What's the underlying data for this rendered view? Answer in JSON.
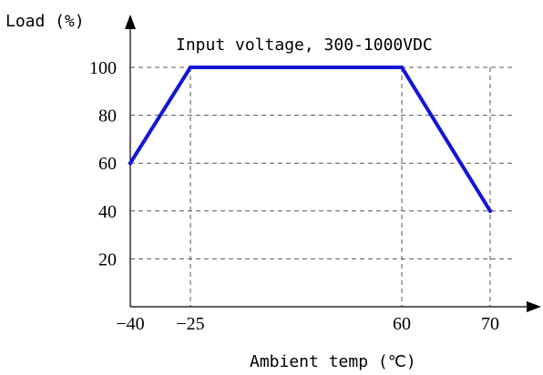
{
  "chart_data": {
    "type": "line",
    "title": "Input voltage, 300-1000VDC",
    "xlabel": "Ambient temp (℃)",
    "ylabel": "Load (%)",
    "x_ticks": [
      "-40",
      "-25",
      "60",
      "70"
    ],
    "y_ticks": [
      "20",
      "40",
      "60",
      "80",
      "100"
    ],
    "xlim": [
      -40,
      80
    ],
    "ylim": [
      0,
      120
    ],
    "grid": true,
    "series": [
      {
        "color": "#1414d8",
        "x": [
          -40,
          -25,
          60,
          70
        ],
        "y": [
          60,
          100,
          100,
          40
        ]
      }
    ]
  }
}
